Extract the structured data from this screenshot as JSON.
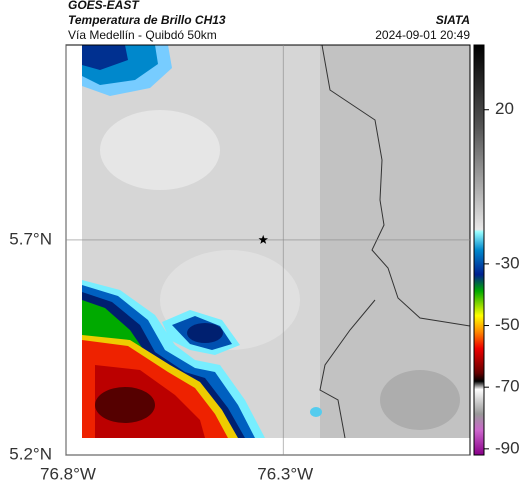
{
  "header": {
    "title": "GOES-EAST",
    "subtitle": "Temperatura de Brillo CH13",
    "region": "Vía Medellín - Quibdó 50km",
    "source": "SIATA",
    "timestamp": "2024-09-01 20:49"
  },
  "map": {
    "xlim": [
      -76.8,
      -75.87
    ],
    "ylim": [
      5.2,
      6.153
    ],
    "xticks": [
      {
        "value": -76.8,
        "label": "76.8°W"
      },
      {
        "value": -76.3,
        "label": "76.3°W"
      }
    ],
    "yticks": [
      {
        "value": 5.2,
        "label": "5.2°N"
      },
      {
        "value": 5.7,
        "label": "5.7°N"
      }
    ],
    "grid": true,
    "marker": {
      "lon": -76.346,
      "lat": 5.7
    }
  },
  "colorbar": {
    "lim": [
      -92,
      41
    ],
    "ticks": [
      20,
      -30,
      -50,
      -70,
      -90
    ]
  }
}
